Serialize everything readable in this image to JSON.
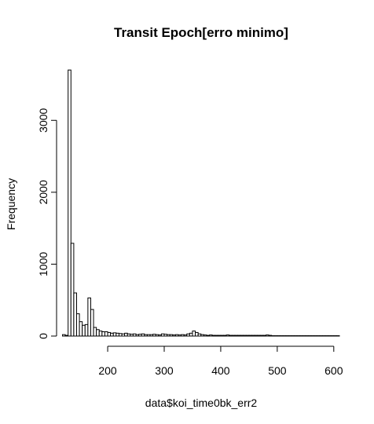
{
  "chart_data": {
    "type": "histogram",
    "title": "Transit Epoch[erro minimo]",
    "xlabel": "data$koi_time0bk_err2",
    "ylabel": "Frequency",
    "xlim": [
      120,
      610
    ],
    "ylim": [
      0,
      3800
    ],
    "x_ticks": [
      200,
      300,
      400,
      500,
      600
    ],
    "y_ticks": [
      0,
      1000,
      2000,
      3000
    ],
    "bin_width": 5,
    "bins_start": [
      120,
      125,
      130,
      135,
      140,
      145,
      150,
      155,
      160,
      165,
      170,
      175,
      180,
      185,
      190,
      195,
      200,
      205,
      210,
      215,
      220,
      225,
      230,
      235,
      240,
      245,
      250,
      255,
      260,
      265,
      270,
      275,
      280,
      285,
      290,
      295,
      300,
      305,
      310,
      315,
      320,
      325,
      330,
      335,
      340,
      345,
      350,
      355,
      360,
      365,
      370,
      375,
      380,
      385,
      390,
      395,
      400,
      405,
      410,
      415,
      420,
      425,
      430,
      435,
      440,
      445,
      450,
      455,
      460,
      465,
      470,
      475,
      480,
      485,
      490,
      495,
      500,
      505,
      510,
      515,
      520,
      525,
      530,
      535,
      540,
      545,
      550,
      555,
      560,
      565,
      570,
      575,
      580,
      585,
      590,
      595,
      600,
      605
    ],
    "counts": [
      20,
      10,
      3700,
      1290,
      600,
      310,
      200,
      150,
      160,
      530,
      370,
      120,
      90,
      70,
      60,
      60,
      50,
      40,
      45,
      40,
      35,
      30,
      40,
      30,
      25,
      30,
      20,
      25,
      30,
      20,
      20,
      20,
      25,
      20,
      15,
      30,
      25,
      20,
      20,
      15,
      20,
      15,
      20,
      15,
      30,
      40,
      70,
      50,
      30,
      20,
      15,
      10,
      15,
      10,
      10,
      10,
      10,
      10,
      15,
      10,
      10,
      10,
      10,
      10,
      10,
      10,
      10,
      10,
      10,
      10,
      10,
      10,
      15,
      10,
      5,
      5,
      5,
      5,
      5,
      5,
      5,
      5,
      5,
      5,
      5,
      5,
      5,
      5,
      5,
      5,
      5,
      5,
      5,
      5,
      5,
      5,
      5,
      5
    ]
  }
}
